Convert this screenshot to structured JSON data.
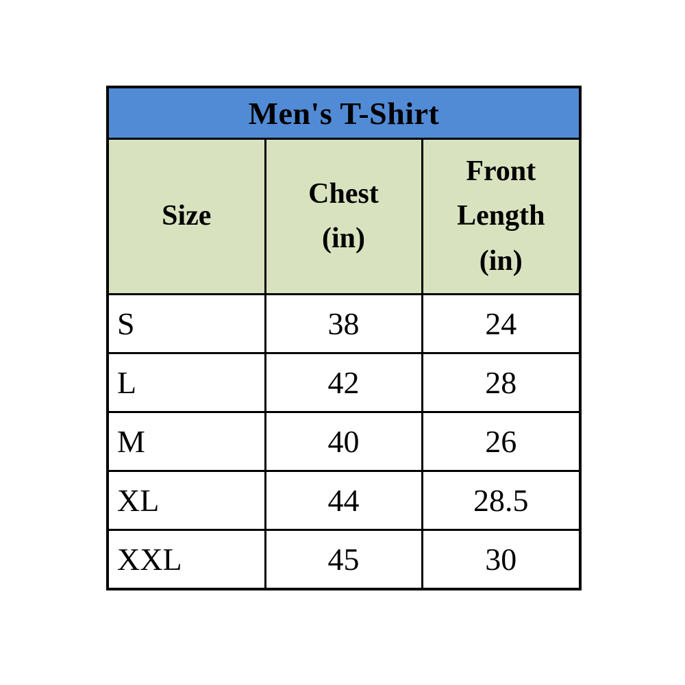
{
  "table": {
    "title": "Men's T-Shirt",
    "columns": {
      "size": "Size",
      "chest": "Chest\n(in)",
      "front_length": "Front\nLength\n(in)"
    },
    "rows": [
      {
        "size": "S",
        "chest": "38",
        "front_length": "24"
      },
      {
        "size": "L",
        "chest": "42",
        "front_length": "28"
      },
      {
        "size": "M",
        "chest": "40",
        "front_length": "26"
      },
      {
        "size": "XL",
        "chest": "44",
        "front_length": "28.5"
      },
      {
        "size": "XXL",
        "chest": "45",
        "front_length": "30"
      }
    ],
    "colors": {
      "title_background": "#528BD5",
      "header_background": "#D9E2BF",
      "row_background": "#FFFFFF",
      "border": "#000000",
      "text": "#000000"
    }
  }
}
